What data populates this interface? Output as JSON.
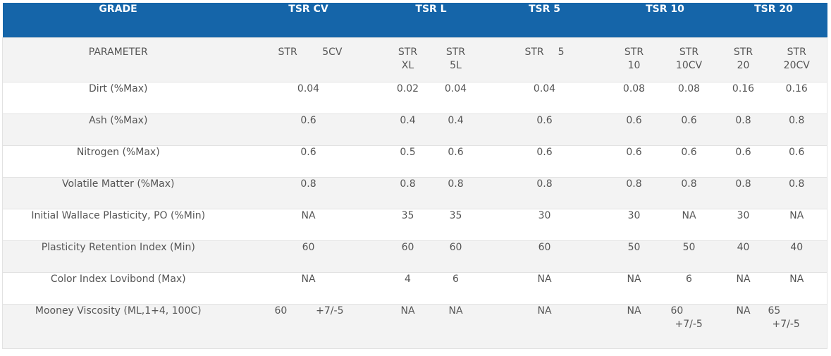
{
  "headers": {
    "grade": "GRADE",
    "tsr_cv": "TSR CV",
    "tsr_l": "TSR L",
    "tsr_5": "TSR 5",
    "tsr_10": "TSR 10",
    "tsr_20": "TSR 20"
  },
  "params_row": {
    "label": "PARAMETER",
    "cv_a": "STR",
    "cv_b": "5CV",
    "l_a1": "STR",
    "l_a2": "XL",
    "l_b1": "STR",
    "l_b2": "5L",
    "t5_a": "STR",
    "t5_b": "5",
    "t10_a1": "STR",
    "t10_a2": "10",
    "t10_b1": "STR",
    "t10_b2": "10CV",
    "t20_a1": "STR",
    "t20_a2": "20",
    "t20_b1": "STR",
    "t20_b2": "20CV"
  },
  "rows": [
    {
      "label": "Dirt (%Max)",
      "cv": "0.04",
      "xl": "0.02",
      "l5": "0.04",
      "t5": "0.04",
      "t10": "0.08",
      "t10cv": "0.08",
      "t20": "0.16",
      "t20cv": "0.16"
    },
    {
      "label": "Ash (%Max)",
      "cv": "0.6",
      "xl": "0.4",
      "l5": "0.4",
      "t5": "0.6",
      "t10": "0.6",
      "t10cv": "0.6",
      "t20": "0.8",
      "t20cv": "0.8"
    },
    {
      "label": "Nitrogen (%Max)",
      "cv": "0.6",
      "xl": "0.5",
      "l5": "0.6",
      "t5": "0.6",
      "t10": "0.6",
      "t10cv": "0.6",
      "t20": "0.6",
      "t20cv": "0.6"
    },
    {
      "label": "Volatile Matter (%Max)",
      "cv": "0.8",
      "xl": "0.8",
      "l5": "0.8",
      "t5": "0.8",
      "t10": "0.8",
      "t10cv": "0.8",
      "t20": "0.8",
      "t20cv": "0.8"
    },
    {
      "label": "Initial Wallace Plasticity, PO (%Min)",
      "cv": "NA",
      "xl": "35",
      "l5": "35",
      "t5": "30",
      "t10": "30",
      "t10cv": "NA",
      "t20": "30",
      "t20cv": "NA"
    },
    {
      "label": "Plasticity Retention Index  (Min)",
      "cv": "60",
      "xl": "60",
      "l5": "60",
      "t5": "60",
      "t10": "50",
      "t10cv": "50",
      "t20": "40",
      "t20cv": "40"
    },
    {
      "label": "Color Index Lovibond (Max)",
      "cv": "NA",
      "xl": "4",
      "l5": "6",
      "t5": "NA",
      "t10": "NA",
      "t10cv": "6",
      "t20": "NA",
      "t20cv": "NA"
    }
  ],
  "mooney": {
    "label": "Mooney Viscosity (ML,1+4, 100C)",
    "cv_a": "60",
    "cv_b": "+7/-5",
    "xl": "NA",
    "l5": "NA",
    "t5": "NA",
    "t10": "NA",
    "t10cv_a": "60",
    "t10cv_b": "+7/-5",
    "t20": "NA",
    "t20cv_a": "65",
    "t20cv_b": "+7/-5"
  },
  "colors": {
    "header_bg": "#1565a9",
    "header_text": "#ffffff",
    "stripe": "#f3f3f3",
    "body_text": "#555555"
  }
}
